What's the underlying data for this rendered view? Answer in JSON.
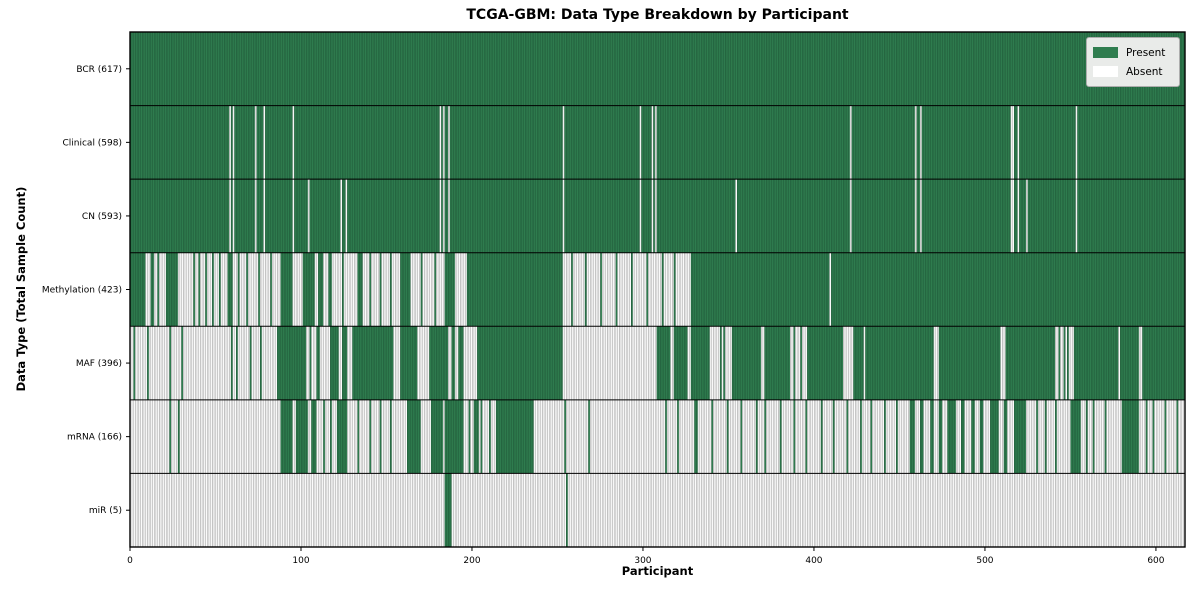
{
  "title": "TCGA-GBM: Data Type Breakdown by Participant",
  "chart_data": {
    "type": "heatmap",
    "title": "TCGA-GBM: Data Type Breakdown by Participant",
    "xlabel": "Participant",
    "ylabel": "Data Type (Total Sample Count)",
    "x_ticks": [
      0,
      100,
      200,
      300,
      400,
      500,
      600
    ],
    "x_range": [
      0,
      617
    ],
    "n_participants": 617,
    "grid": false,
    "cell_states": [
      "Present",
      "Absent"
    ],
    "legend": {
      "position": "upper-right",
      "entries": [
        {
          "label": "Present",
          "color": "#2f7d4f"
        },
        {
          "label": "Absent",
          "color": "#ffffff"
        }
      ]
    },
    "colors": {
      "present": "#2f7d4f",
      "present_edge": "#1e5737",
      "absent": "#ffffff",
      "absent_edge": "#9b9b9b",
      "row_divider": "#000000",
      "plot_border": "#000000"
    },
    "rows": [
      {
        "data_type": "BCR",
        "label": "BCR (617)",
        "present_count": 617,
        "present_intervals": [
          [
            0,
            617
          ]
        ]
      },
      {
        "data_type": "Clinical",
        "label": "Clinical (598)",
        "present_count": 598,
        "present_intervals": [
          [
            0,
            58
          ],
          [
            59,
            60
          ],
          [
            61,
            73
          ],
          [
            74,
            78
          ],
          [
            79,
            95
          ],
          [
            96,
            181
          ],
          [
            182,
            183
          ],
          [
            184,
            186
          ],
          [
            187,
            253
          ],
          [
            254,
            298
          ],
          [
            299,
            305
          ],
          [
            306,
            307
          ],
          [
            308,
            421
          ],
          [
            422,
            459
          ],
          [
            460,
            462
          ],
          [
            463,
            515
          ],
          [
            517,
            519
          ],
          [
            520,
            553
          ],
          [
            554,
            617
          ]
        ]
      },
      {
        "data_type": "CN",
        "label": "CN (593)",
        "present_count": 593,
        "present_intervals": [
          [
            0,
            58
          ],
          [
            59,
            60
          ],
          [
            61,
            73
          ],
          [
            74,
            78
          ],
          [
            79,
            95
          ],
          [
            96,
            104
          ],
          [
            105,
            123
          ],
          [
            124,
            126
          ],
          [
            127,
            181
          ],
          [
            182,
            183
          ],
          [
            184,
            186
          ],
          [
            187,
            253
          ],
          [
            254,
            298
          ],
          [
            299,
            305
          ],
          [
            306,
            307
          ],
          [
            308,
            354
          ],
          [
            355,
            421
          ],
          [
            422,
            459
          ],
          [
            460,
            462
          ],
          [
            463,
            515
          ],
          [
            517,
            519
          ],
          [
            520,
            524
          ],
          [
            525,
            553
          ],
          [
            554,
            617
          ]
        ]
      },
      {
        "data_type": "Methylation",
        "label": "Methylation (423)",
        "present_count": 423,
        "present_intervals": [
          [
            0,
            9
          ],
          [
            12,
            14
          ],
          [
            16,
            17
          ],
          [
            21,
            28
          ],
          [
            37,
            38
          ],
          [
            40,
            41
          ],
          [
            44,
            45
          ],
          [
            48,
            49
          ],
          [
            52,
            53
          ],
          [
            57,
            60
          ],
          [
            63,
            64
          ],
          [
            68,
            69
          ],
          [
            75,
            76
          ],
          [
            82,
            83
          ],
          [
            88,
            95
          ],
          [
            101,
            108
          ],
          [
            110,
            113
          ],
          [
            116,
            118
          ],
          [
            124,
            125
          ],
          [
            133,
            136
          ],
          [
            140,
            141
          ],
          [
            146,
            147
          ],
          [
            152,
            153
          ],
          [
            158,
            164
          ],
          [
            170,
            171
          ],
          [
            178,
            179
          ],
          [
            184,
            190
          ],
          [
            197,
            253
          ],
          [
            258,
            259
          ],
          [
            266,
            267
          ],
          [
            275,
            276
          ],
          [
            284,
            285
          ],
          [
            293,
            294
          ],
          [
            302,
            303
          ],
          [
            311,
            312
          ],
          [
            318,
            319
          ],
          [
            328,
            409
          ],
          [
            410,
            617
          ]
        ]
      },
      {
        "data_type": "MAF",
        "label": "MAF (396)",
        "present_count": 396,
        "present_intervals": [
          [
            2,
            3
          ],
          [
            10,
            11
          ],
          [
            23,
            24
          ],
          [
            30,
            31
          ],
          [
            59,
            60
          ],
          [
            62,
            63
          ],
          [
            70,
            71
          ],
          [
            76,
            77
          ],
          [
            86,
            103
          ],
          [
            105,
            106
          ],
          [
            109,
            111
          ],
          [
            117,
            122
          ],
          [
            124,
            127
          ],
          [
            130,
            154
          ],
          [
            158,
            168
          ],
          [
            175,
            186
          ],
          [
            188,
            190
          ],
          [
            192,
            195
          ],
          [
            203,
            253
          ],
          [
            308,
            316
          ],
          [
            318,
            326
          ],
          [
            328,
            339
          ],
          [
            345,
            346
          ],
          [
            347,
            348
          ],
          [
            352,
            369
          ],
          [
            371,
            386
          ],
          [
            388,
            389
          ],
          [
            392,
            393
          ],
          [
            396,
            417
          ],
          [
            423,
            429
          ],
          [
            430,
            470
          ],
          [
            473,
            509
          ],
          [
            512,
            541
          ],
          [
            543,
            544
          ],
          [
            546,
            547
          ],
          [
            548,
            549
          ],
          [
            552,
            578
          ],
          [
            579,
            590
          ],
          [
            592,
            617
          ]
        ]
      },
      {
        "data_type": "mRNA",
        "label": "mRNA (166)",
        "present_count": 166,
        "present_intervals": [
          [
            23,
            24
          ],
          [
            28,
            29
          ],
          [
            88,
            95
          ],
          [
            97,
            104
          ],
          [
            106,
            109
          ],
          [
            113,
            114
          ],
          [
            117,
            118
          ],
          [
            121,
            127
          ],
          [
            133,
            134
          ],
          [
            140,
            141
          ],
          [
            146,
            147
          ],
          [
            152,
            153
          ],
          [
            162,
            170
          ],
          [
            176,
            183
          ],
          [
            184,
            195
          ],
          [
            198,
            199
          ],
          [
            201,
            204
          ],
          [
            205,
            206
          ],
          [
            210,
            211
          ],
          [
            214,
            236
          ],
          [
            254,
            255
          ],
          [
            268,
            269
          ],
          [
            313,
            314
          ],
          [
            320,
            321
          ],
          [
            330,
            332
          ],
          [
            340,
            341
          ],
          [
            349,
            350
          ],
          [
            357,
            358
          ],
          [
            366,
            367
          ],
          [
            371,
            372
          ],
          [
            380,
            381
          ],
          [
            388,
            389
          ],
          [
            395,
            396
          ],
          [
            404,
            405
          ],
          [
            411,
            412
          ],
          [
            419,
            420
          ],
          [
            427,
            428
          ],
          [
            433,
            434
          ],
          [
            441,
            442
          ],
          [
            448,
            449
          ],
          [
            456,
            459
          ],
          [
            462,
            464
          ],
          [
            468,
            470
          ],
          [
            473,
            475
          ],
          [
            478,
            483
          ],
          [
            486,
            488
          ],
          [
            492,
            494
          ],
          [
            497,
            499
          ],
          [
            503,
            508
          ],
          [
            511,
            513
          ],
          [
            517,
            524
          ],
          [
            530,
            531
          ],
          [
            535,
            536
          ],
          [
            541,
            542
          ],
          [
            550,
            556
          ],
          [
            559,
            560
          ],
          [
            563,
            564
          ],
          [
            570,
            571
          ],
          [
            580,
            590
          ],
          [
            594,
            595
          ],
          [
            598,
            599
          ],
          [
            605,
            606
          ],
          [
            612,
            613
          ]
        ]
      },
      {
        "data_type": "miR",
        "label": "miR (5)",
        "present_count": 5,
        "present_intervals": [
          [
            184,
            188
          ],
          [
            255,
            256
          ]
        ]
      }
    ]
  }
}
